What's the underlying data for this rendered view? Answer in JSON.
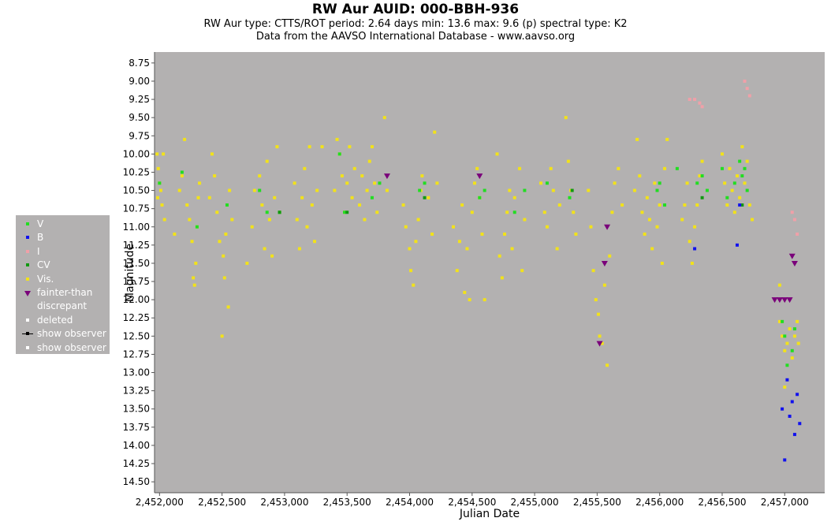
{
  "header": {
    "title": "RW Aur   AUID: 000-BBH-936",
    "subtitle": "RW Aur    type: CTTS/ROT   period: 2.64 days   min: 13.6   max: 9.6 (p)   spectral type: K2",
    "credit": "Data from the AAVSO International Database - www.aavso.org"
  },
  "legend": {
    "placement": "left",
    "items": [
      {
        "label": "V",
        "color": "#22dd22",
        "marker": "square"
      },
      {
        "label": "B",
        "color": "#1111ee",
        "marker": "square"
      },
      {
        "label": "I",
        "color": "#f0a0a8",
        "marker": "square"
      },
      {
        "label": "CV",
        "color": "#119911",
        "marker": "square"
      },
      {
        "label": "Vis.",
        "color": "#f2e21a",
        "marker": "square"
      },
      {
        "label": "fainter-than",
        "color": "#7a007a",
        "marker": "triangle-down"
      },
      {
        "label": "discrepant",
        "color": "#d8d8d8",
        "marker": "none"
      },
      {
        "label": "deleted",
        "color": "#ffffff",
        "marker": "square"
      },
      {
        "label": "show observer",
        "color": "#000000",
        "marker": "line"
      },
      {
        "label": "show observer",
        "color": "#ffffff",
        "marker": "square"
      }
    ]
  },
  "chart_data": {
    "type": "scatter",
    "xlabel": "Julian Date",
    "ylabel": "Magnitude",
    "xlim": [
      2451960,
      2457320
    ],
    "ylim": [
      8.6,
      14.65
    ],
    "y_inverted": true,
    "grid": false,
    "background": "#b3b1b1",
    "x_ticks": [
      2452000,
      2452500,
      2453000,
      2453500,
      2454000,
      2454500,
      2455000,
      2455500,
      2456000,
      2456500,
      2457000
    ],
    "x_tick_labels": [
      "2,452,000",
      "2,452,500",
      "2,453,000",
      "2,453,500",
      "2,454,000",
      "2,454,500",
      "2,455,000",
      "2,455,500",
      "2,456,000",
      "2,456,500",
      "2,457,000"
    ],
    "y_ticks": [
      8.75,
      9.0,
      9.25,
      9.5,
      9.75,
      10.0,
      10.25,
      10.5,
      10.75,
      11.0,
      11.25,
      11.5,
      11.75,
      12.0,
      12.25,
      12.5,
      12.75,
      13.0,
      13.25,
      13.5,
      13.75,
      14.0,
      14.25,
      14.5
    ],
    "y_tick_labels": [
      "8.75",
      "9.00",
      "9.25",
      "9.50",
      "9.75",
      "10.00",
      "10.25",
      "10.50",
      "10.75",
      "11.00",
      "11.25",
      "11.50",
      "11.75",
      "12.00",
      "12.25",
      "12.50",
      "12.75",
      "13.00",
      "13.25",
      "13.50",
      "13.75",
      "14.00",
      "14.25",
      "14.50"
    ],
    "series": [
      {
        "name": "Vis.",
        "color": "#f2e21a",
        "marker": "square",
        "points": [
          [
            2451980,
            10.0
          ],
          [
            2451990,
            10.2
          ],
          [
            2452000,
            10.4
          ],
          [
            2452010,
            10.5
          ],
          [
            2452020,
            10.7
          ],
          [
            2452030,
            10.0
          ],
          [
            2452040,
            10.9
          ],
          [
            2451985,
            10.6
          ],
          [
            2452120,
            11.1
          ],
          [
            2452160,
            10.5
          ],
          [
            2452180,
            10.3
          ],
          [
            2452200,
            9.8
          ],
          [
            2452220,
            10.7
          ],
          [
            2452240,
            10.9
          ],
          [
            2452260,
            11.2
          ],
          [
            2452270,
            11.7
          ],
          [
            2452280,
            11.8
          ],
          [
            2452290,
            11.5
          ],
          [
            2452300,
            11.0
          ],
          [
            2452310,
            10.6
          ],
          [
            2452320,
            10.4
          ],
          [
            2452400,
            10.6
          ],
          [
            2452420,
            10.0
          ],
          [
            2452440,
            10.3
          ],
          [
            2452460,
            10.8
          ],
          [
            2452480,
            11.2
          ],
          [
            2452500,
            12.5
          ],
          [
            2452510,
            11.4
          ],
          [
            2452520,
            11.7
          ],
          [
            2452530,
            11.1
          ],
          [
            2452540,
            10.7
          ],
          [
            2452550,
            12.1
          ],
          [
            2452560,
            10.5
          ],
          [
            2452580,
            10.9
          ],
          [
            2452700,
            11.5
          ],
          [
            2452740,
            11.0
          ],
          [
            2452760,
            10.5
          ],
          [
            2452800,
            10.3
          ],
          [
            2452820,
            10.7
          ],
          [
            2452840,
            11.3
          ],
          [
            2452860,
            10.1
          ],
          [
            2452880,
            10.9
          ],
          [
            2452900,
            11.4
          ],
          [
            2452920,
            10.6
          ],
          [
            2452940,
            9.9
          ],
          [
            2452960,
            10.8
          ],
          [
            2453080,
            10.4
          ],
          [
            2453100,
            10.9
          ],
          [
            2453120,
            11.3
          ],
          [
            2453140,
            10.6
          ],
          [
            2453160,
            10.2
          ],
          [
            2453180,
            11.0
          ],
          [
            2453200,
            9.9
          ],
          [
            2453220,
            10.7
          ],
          [
            2453240,
            11.2
          ],
          [
            2453260,
            10.5
          ],
          [
            2453300,
            9.9
          ],
          [
            2453400,
            10.5
          ],
          [
            2453420,
            9.8
          ],
          [
            2453440,
            10.0
          ],
          [
            2453460,
            10.3
          ],
          [
            2453480,
            10.8
          ],
          [
            2453500,
            10.4
          ],
          [
            2453520,
            9.9
          ],
          [
            2453540,
            10.6
          ],
          [
            2453560,
            10.2
          ],
          [
            2453600,
            10.7
          ],
          [
            2453620,
            10.3
          ],
          [
            2453640,
            10.9
          ],
          [
            2453660,
            10.5
          ],
          [
            2453680,
            10.1
          ],
          [
            2453700,
            9.9
          ],
          [
            2453720,
            10.4
          ],
          [
            2453740,
            10.8
          ],
          [
            2453800,
            9.5
          ],
          [
            2453820,
            10.5
          ],
          [
            2453950,
            10.7
          ],
          [
            2453970,
            11.0
          ],
          [
            2454000,
            11.3
          ],
          [
            2454010,
            11.6
          ],
          [
            2454030,
            11.8
          ],
          [
            2454050,
            11.2
          ],
          [
            2454070,
            10.9
          ],
          [
            2454090,
            10.5
          ],
          [
            2454100,
            10.3
          ],
          [
            2454150,
            10.6
          ],
          [
            2454180,
            11.1
          ],
          [
            2454200,
            9.7
          ],
          [
            2454220,
            10.4
          ],
          [
            2454350,
            11.0
          ],
          [
            2454380,
            11.6
          ],
          [
            2454400,
            11.2
          ],
          [
            2454420,
            10.7
          ],
          [
            2454440,
            11.9
          ],
          [
            2454460,
            11.3
          ],
          [
            2454480,
            12.0
          ],
          [
            2454500,
            10.8
          ],
          [
            2454520,
            10.4
          ],
          [
            2454540,
            10.2
          ],
          [
            2454560,
            10.6
          ],
          [
            2454580,
            11.1
          ],
          [
            2454600,
            12.0
          ],
          [
            2454700,
            10.0
          ],
          [
            2454720,
            11.4
          ],
          [
            2454740,
            11.7
          ],
          [
            2454760,
            11.1
          ],
          [
            2454780,
            10.8
          ],
          [
            2454800,
            10.5
          ],
          [
            2454820,
            11.3
          ],
          [
            2454840,
            10.6
          ],
          [
            2454880,
            10.2
          ],
          [
            2454900,
            11.6
          ],
          [
            2454920,
            10.9
          ],
          [
            2455050,
            10.4
          ],
          [
            2455080,
            10.8
          ],
          [
            2455100,
            11.0
          ],
          [
            2455130,
            10.2
          ],
          [
            2455150,
            10.5
          ],
          [
            2455180,
            11.3
          ],
          [
            2455200,
            10.7
          ],
          [
            2455250,
            9.5
          ],
          [
            2455270,
            10.1
          ],
          [
            2455290,
            10.5
          ],
          [
            2455310,
            10.8
          ],
          [
            2455330,
            11.1
          ],
          [
            2455430,
            10.5
          ],
          [
            2455450,
            11.0
          ],
          [
            2455470,
            11.6
          ],
          [
            2455490,
            12.0
          ],
          [
            2455510,
            12.2
          ],
          [
            2455520,
            12.5
          ],
          [
            2455540,
            12.6
          ],
          [
            2455560,
            11.8
          ],
          [
            2455580,
            12.9
          ],
          [
            2455600,
            11.4
          ],
          [
            2455620,
            10.8
          ],
          [
            2455640,
            10.4
          ],
          [
            2455670,
            10.2
          ],
          [
            2455700,
            10.7
          ],
          [
            2455800,
            10.5
          ],
          [
            2455820,
            9.8
          ],
          [
            2455840,
            10.3
          ],
          [
            2455860,
            10.8
          ],
          [
            2455880,
            11.1
          ],
          [
            2455900,
            10.6
          ],
          [
            2455920,
            10.9
          ],
          [
            2455940,
            11.3
          ],
          [
            2455960,
            10.4
          ],
          [
            2455980,
            11.0
          ],
          [
            2456000,
            10.7
          ],
          [
            2456020,
            11.5
          ],
          [
            2456040,
            10.2
          ],
          [
            2456060,
            9.8
          ],
          [
            2456180,
            10.9
          ],
          [
            2456200,
            10.7
          ],
          [
            2456220,
            10.4
          ],
          [
            2456240,
            11.2
          ],
          [
            2456260,
            11.5
          ],
          [
            2456280,
            11.0
          ],
          [
            2456300,
            10.7
          ],
          [
            2456320,
            10.3
          ],
          [
            2456340,
            10.1
          ],
          [
            2456500,
            10.0
          ],
          [
            2456520,
            10.4
          ],
          [
            2456540,
            10.7
          ],
          [
            2456560,
            10.2
          ],
          [
            2456580,
            10.5
          ],
          [
            2456600,
            10.8
          ],
          [
            2456620,
            10.3
          ],
          [
            2456640,
            10.6
          ],
          [
            2456660,
            9.9
          ],
          [
            2456680,
            10.4
          ],
          [
            2456700,
            10.1
          ],
          [
            2456720,
            10.7
          ],
          [
            2456740,
            10.9
          ],
          [
            2456960,
            12.3
          ],
          [
            2456980,
            12.5
          ],
          [
            2457000,
            12.7
          ],
          [
            2457020,
            12.6
          ],
          [
            2457040,
            12.4
          ],
          [
            2457060,
            12.8
          ],
          [
            2457080,
            12.5
          ],
          [
            2457100,
            12.3
          ],
          [
            2457110,
            12.6
          ],
          [
            2457000,
            13.2
          ],
          [
            2456960,
            11.8
          ]
        ]
      },
      {
        "name": "V",
        "color": "#22dd22",
        "marker": "square",
        "points": [
          [
            2452000,
            10.4
          ],
          [
            2452180,
            10.25
          ],
          [
            2452300,
            11.0
          ],
          [
            2452540,
            10.7
          ],
          [
            2452800,
            10.5
          ],
          [
            2452860,
            10.8
          ],
          [
            2452960,
            10.8
          ],
          [
            2453440,
            10.0
          ],
          [
            2453480,
            10.8
          ],
          [
            2453700,
            10.6
          ],
          [
            2453760,
            10.4
          ],
          [
            2454080,
            10.5
          ],
          [
            2454120,
            10.4
          ],
          [
            2454560,
            10.6
          ],
          [
            2454600,
            10.5
          ],
          [
            2454840,
            10.8
          ],
          [
            2454920,
            10.5
          ],
          [
            2455100,
            10.4
          ],
          [
            2455280,
            10.6
          ],
          [
            2455980,
            10.5
          ],
          [
            2456000,
            10.4
          ],
          [
            2456040,
            10.7
          ],
          [
            2456140,
            10.2
          ],
          [
            2456300,
            10.4
          ],
          [
            2456340,
            10.3
          ],
          [
            2456380,
            10.5
          ],
          [
            2456500,
            10.2
          ],
          [
            2456540,
            10.6
          ],
          [
            2456600,
            10.4
          ],
          [
            2456640,
            10.1
          ],
          [
            2456660,
            10.3
          ],
          [
            2456680,
            10.2
          ],
          [
            2456700,
            10.5
          ],
          [
            2456980,
            12.3
          ],
          [
            2457000,
            12.5
          ],
          [
            2457020,
            12.9
          ],
          [
            2457060,
            12.7
          ],
          [
            2457080,
            12.4
          ]
        ]
      },
      {
        "name": "CV",
        "color": "#119911",
        "marker": "square",
        "points": [
          [
            2452960,
            10.8
          ],
          [
            2453500,
            10.8
          ],
          [
            2454120,
            10.6
          ],
          [
            2455300,
            10.5
          ],
          [
            2456340,
            10.6
          ],
          [
            2456660,
            10.7
          ]
        ]
      },
      {
        "name": "B",
        "color": "#1111ee",
        "marker": "square",
        "points": [
          [
            2456280,
            11.3
          ],
          [
            2456620,
            11.25
          ],
          [
            2456640,
            10.7
          ],
          [
            2456980,
            13.5
          ],
          [
            2457000,
            14.2
          ],
          [
            2457020,
            13.1
          ],
          [
            2457040,
            13.6
          ],
          [
            2457060,
            13.4
          ],
          [
            2457080,
            13.85
          ],
          [
            2457100,
            13.3
          ],
          [
            2457120,
            13.7
          ]
        ]
      },
      {
        "name": "I",
        "color": "#f0a0a8",
        "marker": "square",
        "points": [
          [
            2456240,
            9.25
          ],
          [
            2456280,
            9.25
          ],
          [
            2456320,
            9.3
          ],
          [
            2456340,
            9.35
          ],
          [
            2456680,
            9.0
          ],
          [
            2456700,
            9.1
          ],
          [
            2456720,
            9.2
          ],
          [
            2457060,
            10.8
          ],
          [
            2457080,
            10.9
          ],
          [
            2457100,
            11.1
          ]
        ]
      },
      {
        "name": "fainter-than",
        "color": "#7a007a",
        "marker": "triangle-down",
        "points": [
          [
            2453820,
            10.3
          ],
          [
            2454560,
            10.3
          ],
          [
            2455520,
            12.6
          ],
          [
            2455560,
            11.5
          ],
          [
            2455580,
            11.0
          ],
          [
            2456920,
            12.0
          ],
          [
            2456960,
            12.0
          ],
          [
            2457000,
            12.0
          ],
          [
            2457040,
            12.0
          ],
          [
            2457060,
            11.4
          ],
          [
            2457080,
            11.5
          ]
        ]
      }
    ]
  }
}
